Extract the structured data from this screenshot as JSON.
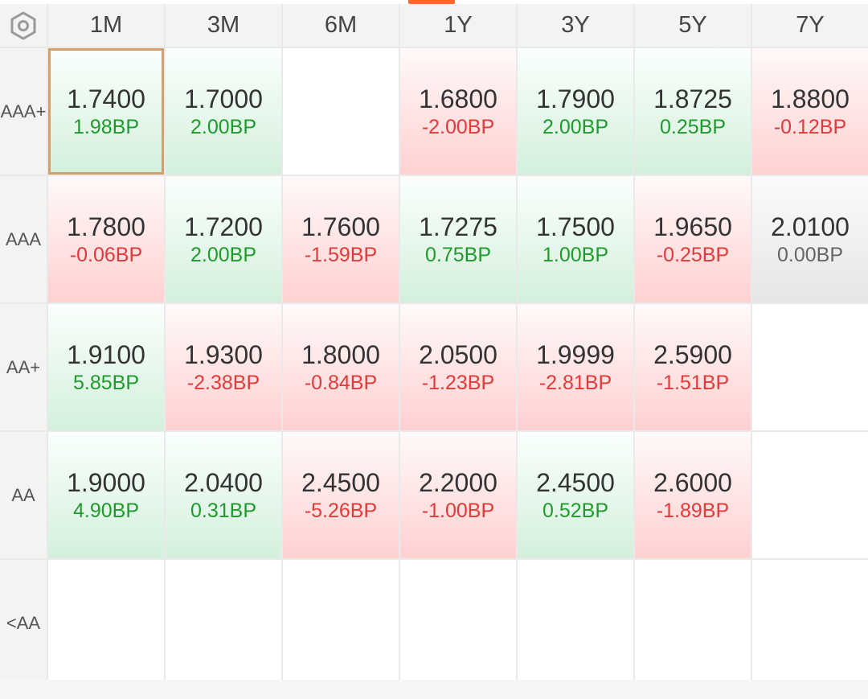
{
  "header": {
    "settings_icon": "hexagon-settings-icon",
    "columns": [
      "1M",
      "3M",
      "6M",
      "1Y",
      "3Y",
      "5Y",
      "7Y"
    ]
  },
  "rows": [
    {
      "label": "AAA+",
      "cells": [
        {
          "value": "1.7400",
          "change": "1.98BP",
          "trend": "up"
        },
        {
          "value": "1.7000",
          "change": "2.00BP",
          "trend": "up"
        },
        null,
        {
          "value": "1.6800",
          "change": "-2.00BP",
          "trend": "down"
        },
        {
          "value": "1.7900",
          "change": "2.00BP",
          "trend": "up"
        },
        {
          "value": "1.8725",
          "change": "0.25BP",
          "trend": "up"
        },
        {
          "value": "1.8800",
          "change": "-0.12BP",
          "trend": "down"
        }
      ]
    },
    {
      "label": "AAA",
      "cells": [
        {
          "value": "1.7800",
          "change": "-0.06BP",
          "trend": "down"
        },
        {
          "value": "1.7200",
          "change": "2.00BP",
          "trend": "up"
        },
        {
          "value": "1.7600",
          "change": "-1.59BP",
          "trend": "down"
        },
        {
          "value": "1.7275",
          "change": "0.75BP",
          "trend": "up"
        },
        {
          "value": "1.7500",
          "change": "1.00BP",
          "trend": "up"
        },
        {
          "value": "1.9650",
          "change": "-0.25BP",
          "trend": "down"
        },
        {
          "value": "2.0100",
          "change": "0.00BP",
          "trend": "flat"
        }
      ]
    },
    {
      "label": "AA+",
      "cells": [
        {
          "value": "1.9100",
          "change": "5.85BP",
          "trend": "up"
        },
        {
          "value": "1.9300",
          "change": "-2.38BP",
          "trend": "down"
        },
        {
          "value": "1.8000",
          "change": "-0.84BP",
          "trend": "down"
        },
        {
          "value": "2.0500",
          "change": "-1.23BP",
          "trend": "down"
        },
        {
          "value": "1.9999",
          "change": "-2.81BP",
          "trend": "down"
        },
        {
          "value": "2.5900",
          "change": "-1.51BP",
          "trend": "down"
        },
        null
      ]
    },
    {
      "label": "AA",
      "cells": [
        {
          "value": "1.9000",
          "change": "4.90BP",
          "trend": "up"
        },
        {
          "value": "2.0400",
          "change": "0.31BP",
          "trend": "up"
        },
        {
          "value": "2.4500",
          "change": "-5.26BP",
          "trend": "down"
        },
        {
          "value": "2.2000",
          "change": "-1.00BP",
          "trend": "down"
        },
        {
          "value": "2.4500",
          "change": "0.52BP",
          "trend": "up"
        },
        {
          "value": "2.6000",
          "change": "-1.89BP",
          "trend": "down"
        },
        null
      ]
    },
    {
      "label": "<AA",
      "cells": [
        null,
        null,
        null,
        null,
        null,
        null,
        null
      ]
    }
  ],
  "selected": {
    "row": 0,
    "col": 0
  },
  "colors": {
    "up_text": "#1f9b2c",
    "down_text": "#e03a3a",
    "up_bg": "#d4f0dd",
    "down_bg": "#ffd1d1",
    "selected_border": "#d2a06a",
    "accent": "#ff6a2b"
  }
}
